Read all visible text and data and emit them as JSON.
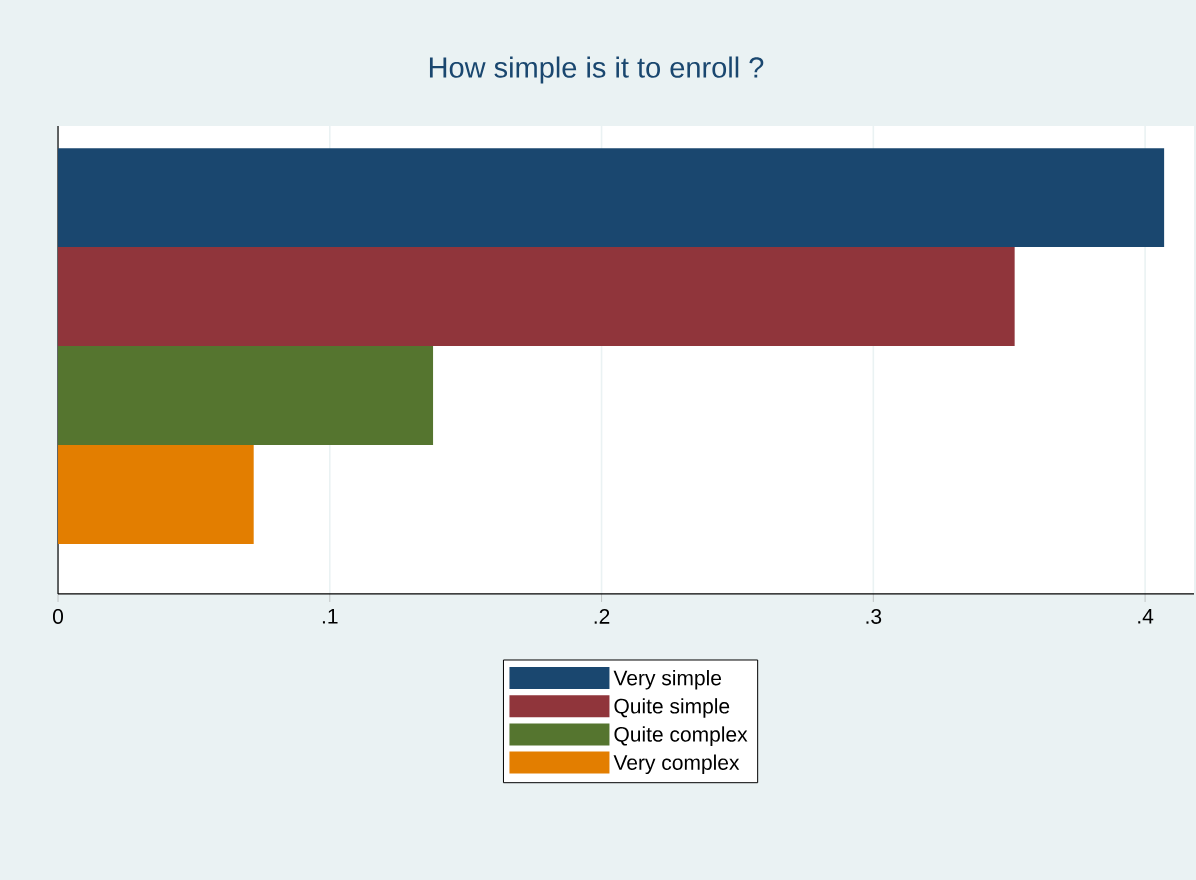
{
  "chart_data": {
    "type": "bar",
    "orientation": "horizontal",
    "title": "How simple is it to enroll ?",
    "categories": [
      null
    ],
    "series": [
      {
        "name": "Very simple",
        "color": "#1a476f",
        "values": [
          0.407
        ]
      },
      {
        "name": "Quite simple",
        "color": "#90353b",
        "values": [
          0.352
        ]
      },
      {
        "name": "Quite complex",
        "color": "#55752f",
        "values": [
          0.138
        ]
      },
      {
        "name": "Very complex",
        "color": "#e37e00",
        "values": [
          0.072
        ]
      }
    ],
    "xlim": [
      0,
      0.418
    ],
    "xticks": [
      0,
      {
        "value": 0.1,
        "label": ".1"
      },
      {
        "value": 0.2,
        "label": ".2"
      },
      {
        "value": 0.3,
        "label": ".3"
      },
      {
        "value": 0.4,
        "label": ".4"
      }
    ],
    "grid": "x",
    "legend": "bottom"
  }
}
